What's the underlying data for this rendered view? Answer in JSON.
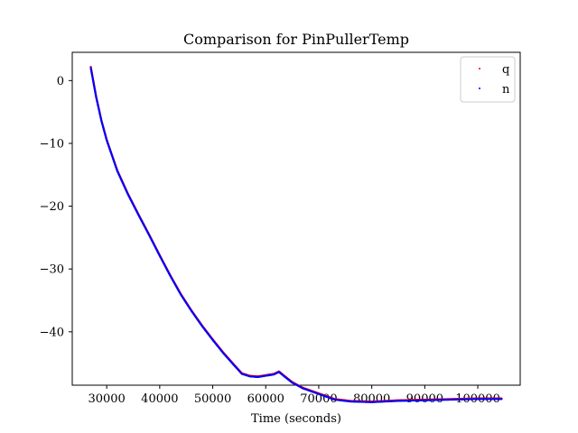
{
  "chart_data": {
    "type": "scatter",
    "title": "Comparison for PinPullerTemp",
    "xlabel": "Time (seconds)",
    "ylabel": "",
    "xlim": [
      23500,
      108000
    ],
    "ylim": [
      -48.5,
      4.5
    ],
    "xticks": [
      30000,
      40000,
      50000,
      60000,
      70000,
      80000,
      90000,
      100000
    ],
    "yticks": [
      0,
      -10,
      -20,
      -30,
      -40
    ],
    "grid": false,
    "legend_position": "top-right",
    "series": [
      {
        "name": "q",
        "color": "#ff0000",
        "x": [
          27000,
          28000,
          29000,
          30000,
          32000,
          34000,
          36000,
          38000,
          40000,
          42000,
          44000,
          46000,
          48000,
          50000,
          52000,
          54000,
          55500,
          57000,
          58500,
          60000,
          61500,
          62500,
          63500,
          65000,
          67000,
          70000,
          73000,
          76000,
          80000,
          85000,
          90000,
          95000,
          100000,
          104500
        ],
        "y": [
          2.2,
          -2.5,
          -6.3,
          -9.4,
          -14.3,
          -18.0,
          -21.3,
          -24.5,
          -27.8,
          -31.0,
          -34.0,
          -36.6,
          -39.0,
          -41.2,
          -43.3,
          -45.2,
          -46.6,
          -47.0,
          -47.1,
          -46.9,
          -46.7,
          -46.3,
          -47.0,
          -48.0,
          -48.9,
          -49.8,
          -50.7,
          -51.0,
          -51.1,
          -50.9,
          -50.8,
          -50.7,
          -50.6,
          -50.6
        ]
      },
      {
        "name": "n",
        "color": "#0000ff",
        "x": [
          27000,
          28000,
          29000,
          30000,
          32000,
          34000,
          36000,
          38000,
          40000,
          42000,
          44000,
          46000,
          48000,
          50000,
          52000,
          54000,
          55500,
          57000,
          58500,
          60000,
          61500,
          62500,
          63500,
          65000,
          67000,
          70000,
          73000,
          76000,
          80000,
          85000,
          90000,
          95000,
          100000,
          104500
        ],
        "y": [
          2.0,
          -2.6,
          -6.4,
          -9.5,
          -14.4,
          -18.1,
          -21.4,
          -24.6,
          -27.9,
          -31.1,
          -34.1,
          -36.7,
          -39.1,
          -41.3,
          -43.4,
          -45.3,
          -46.7,
          -47.1,
          -47.2,
          -47.0,
          -46.8,
          -46.4,
          -47.1,
          -48.1,
          -49.0,
          -49.9,
          -50.8,
          -51.1,
          -51.2,
          -51.0,
          -50.9,
          -50.8,
          -50.7,
          -50.7
        ]
      }
    ]
  }
}
